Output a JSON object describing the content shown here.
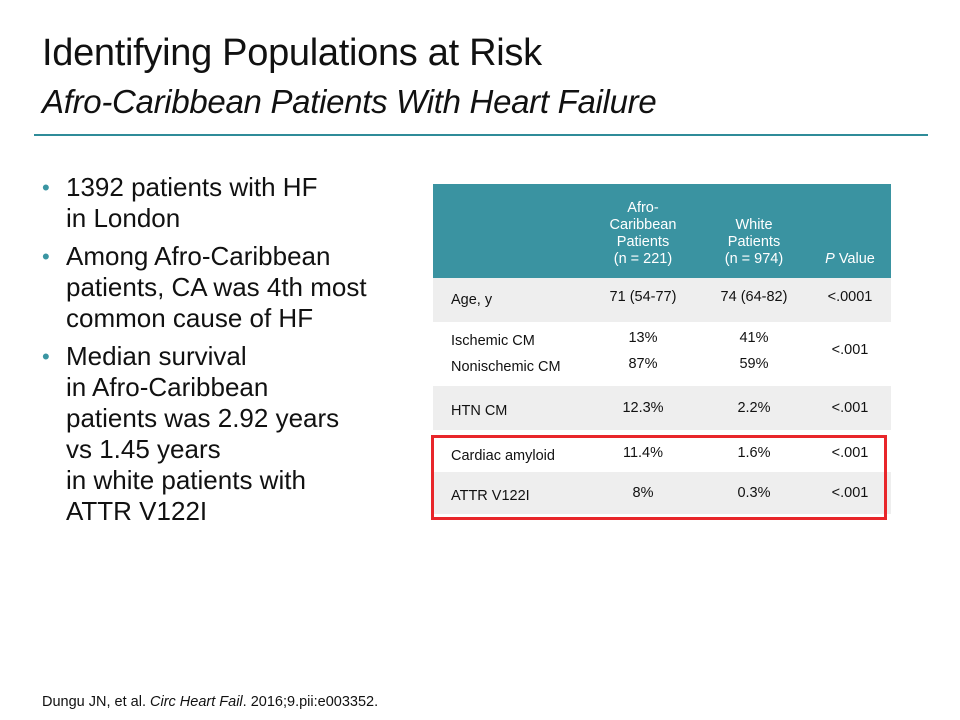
{
  "slide": {
    "title": "Identifying Populations at Risk",
    "subtitle": "Afro-Caribbean Patients With Heart Failure"
  },
  "bullets": [
    {
      "lines": [
        "1392 patients with HF",
        "in London"
      ]
    },
    {
      "lines": [
        "Among Afro-Caribbean",
        "patients, CA was 4th most",
        "common cause of HF"
      ]
    },
    {
      "lines": [
        "Median survival",
        "in Afro-Caribbean",
        "patients was 2.92 years",
        "vs 1.45 years",
        "in white patients with",
        "ATTR V122I"
      ]
    }
  ],
  "table": {
    "header": {
      "afro": [
        "Afro-",
        "Caribbean",
        "Patients",
        "(n = 221)"
      ],
      "white": [
        "White",
        "Patients",
        "(n = 974)"
      ],
      "p_italic": "P",
      "p_rest": " Value"
    },
    "rows": [
      {
        "label": "Age, y",
        "afro": "71 (54-77)",
        "white": "74 (64-82)",
        "p": "<.0001"
      },
      {
        "label": "Ischemic CM",
        "label2": "Nonischemic CM",
        "afro": "13%",
        "afro2": "87%",
        "white": "41%",
        "white2": "59%",
        "p": "<.001"
      },
      {
        "label": "HTN CM",
        "afro": "12.3%",
        "white": "2.2%",
        "p": "<.001"
      },
      {
        "label": "Cardiac amyloid",
        "afro": "11.4%",
        "white": "1.6%",
        "p": "<.001"
      },
      {
        "label": "ATTR V122I",
        "afro": "8%",
        "white": "0.3%",
        "p": "<.001"
      }
    ]
  },
  "citation": {
    "authors": "Dungu JN, et al. ",
    "journal": "Circ Heart Fail",
    "rest": ". 2016;9.pii:e003352."
  },
  "colors": {
    "accent": "#3a93a1",
    "highlight": "#e8262a",
    "row_shade": "#eeeeee"
  }
}
